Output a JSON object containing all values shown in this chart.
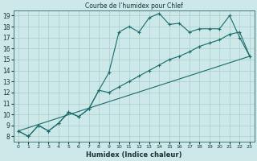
{
  "title": "Courbe de l’humidex pour Chlef",
  "xlabel": "Humidex (Indice chaleur)",
  "bg_color": "#cce8e8",
  "grid_color": "#aacccc",
  "line_color": "#1a6b6b",
  "xlim": [
    -0.5,
    23.5
  ],
  "ylim": [
    7.5,
    19.5
  ],
  "xticks": [
    0,
    1,
    2,
    3,
    4,
    5,
    6,
    7,
    8,
    9,
    10,
    11,
    12,
    13,
    14,
    15,
    16,
    17,
    18,
    19,
    20,
    21,
    22,
    23
  ],
  "yticks": [
    8,
    9,
    10,
    11,
    12,
    13,
    14,
    15,
    16,
    17,
    18,
    19
  ],
  "line1_x": [
    0,
    1,
    2,
    3,
    4,
    5,
    6,
    7,
    8,
    9,
    10,
    11,
    12,
    13,
    14,
    15,
    16,
    17,
    18,
    19,
    20,
    21,
    22,
    23
  ],
  "line1_y": [
    8.5,
    8.0,
    9.0,
    8.5,
    9.2,
    10.2,
    9.8,
    10.5,
    12.2,
    13.8,
    17.5,
    18.0,
    17.5,
    18.8,
    19.2,
    18.2,
    18.3,
    17.5,
    17.8,
    17.8,
    17.8,
    19.0,
    17.0,
    15.3
  ],
  "line2_x": [
    0,
    1,
    2,
    3,
    4,
    5,
    6,
    7,
    8,
    9,
    10,
    11,
    12,
    13,
    14,
    15,
    16,
    17,
    18,
    19,
    20,
    21,
    22,
    23
  ],
  "line2_y": [
    8.5,
    8.0,
    9.0,
    8.5,
    9.2,
    10.2,
    9.8,
    10.5,
    12.2,
    12.0,
    12.5,
    13.0,
    13.5,
    14.0,
    14.5,
    15.0,
    15.3,
    15.7,
    16.2,
    16.5,
    16.8,
    17.3,
    17.5,
    15.3
  ],
  "line3_x": [
    0,
    23
  ],
  "line3_y": [
    8.5,
    15.3
  ]
}
